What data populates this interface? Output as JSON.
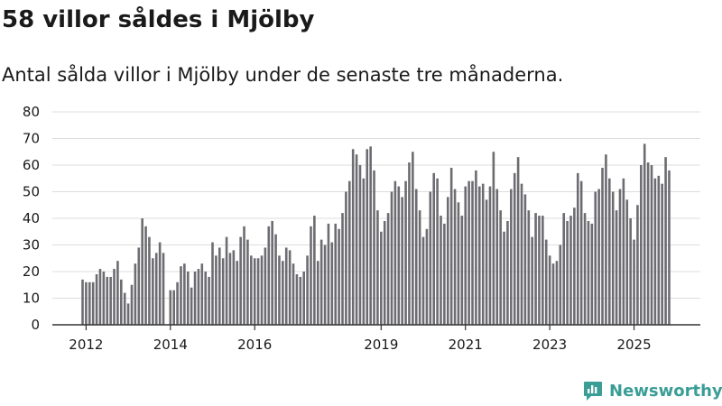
{
  "header": {
    "title": "58 villor såldes i Mjölby",
    "subtitle": "Antal sålda villor i Mjölby under de senaste tre månaderna."
  },
  "brand": {
    "name": "Newsworthy",
    "icon": "newsworthy-logo-icon"
  },
  "colors": {
    "bar": "#6d6c71",
    "highlight": "#2a9a94",
    "grid": "#dddddd",
    "axis": "#333333",
    "text": "#1a1a1a",
    "brand": "#3a9d96"
  },
  "chart_data": {
    "type": "bar",
    "title": "58 villor såldes i Mjölby",
    "xlabel": "",
    "ylabel": "",
    "ylim": [
      0,
      80
    ],
    "yticks": [
      0,
      10,
      20,
      30,
      40,
      50,
      60,
      70,
      80
    ],
    "grid": true,
    "legend": "none",
    "start": "2011-12",
    "end": "2025-12",
    "xticks": [
      {
        "label": "2012",
        "index": 1
      },
      {
        "label": "2014",
        "index": 25
      },
      {
        "label": "2016",
        "index": 49
      },
      {
        "label": "2019",
        "index": 85
      },
      {
        "label": "2021",
        "index": 109
      },
      {
        "label": "2023",
        "index": 133
      },
      {
        "label": "2025",
        "index": 157
      }
    ],
    "highlight": {
      "index": 168,
      "label": "58"
    },
    "values": [
      17,
      16,
      16,
      16,
      19,
      21,
      20,
      18,
      18,
      21,
      24,
      17,
      12,
      8,
      15,
      23,
      29,
      40,
      37,
      33,
      25,
      27,
      31,
      27,
      null,
      13,
      13,
      16,
      22,
      23,
      20,
      14,
      20,
      21,
      23,
      20,
      18,
      31,
      26,
      29,
      25,
      33,
      27,
      28,
      24,
      33,
      37,
      32,
      26,
      25,
      25,
      26,
      29,
      37,
      39,
      34,
      26,
      24,
      29,
      28,
      23,
      19,
      18,
      20,
      26,
      37,
      41,
      24,
      32,
      30,
      38,
      31,
      38,
      36,
      42,
      50,
      54,
      66,
      64,
      60,
      55,
      66,
      67,
      58,
      43,
      35,
      39,
      42,
      50,
      54,
      52,
      48,
      54,
      61,
      65,
      51,
      43,
      33,
      36,
      50,
      57,
      55,
      41,
      38,
      48,
      59,
      51,
      46,
      41,
      52,
      54,
      54,
      58,
      52,
      53,
      47,
      52,
      65,
      51,
      43,
      35,
      39,
      51,
      57,
      63,
      53,
      49,
      43,
      33,
      42,
      41,
      41,
      32,
      26,
      23,
      24,
      30,
      42,
      39,
      41,
      44,
      57,
      54,
      42,
      39,
      38,
      50,
      51,
      59,
      64,
      55,
      50,
      43,
      51,
      55,
      47,
      40,
      32,
      45,
      60,
      68,
      61,
      60,
      55,
      56,
      53,
      63,
      58
    ]
  }
}
